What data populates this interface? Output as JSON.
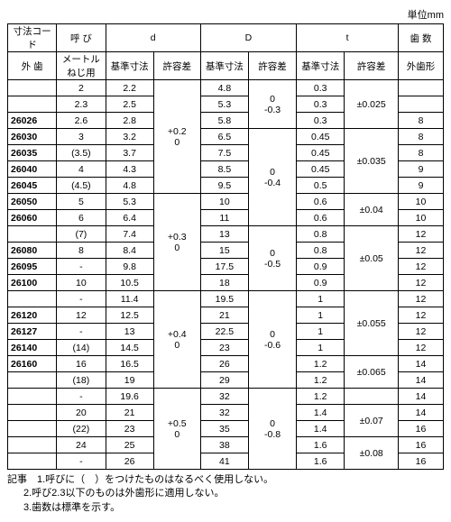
{
  "unit_label": "単位mm",
  "headers": {
    "code": "寸法コード",
    "nominal": "呼 び",
    "d": "d",
    "D": "D",
    "t": "t",
    "teeth": "歯 数",
    "outer": "外 歯",
    "metric": "メートルねじ用",
    "ref": "基準寸法",
    "tol": "許容差",
    "shape": "外歯形"
  },
  "d_tol": [
    "+0.2\n0",
    "+0.3\n0",
    "+0.4\n0",
    "+0.5\n0"
  ],
  "D_tol": [
    "0\n-0.3",
    "0\n-0.4",
    "0\n-0.5",
    "0\n-0.6",
    "0\n-0.8"
  ],
  "t_tol": [
    "±0.025",
    "±0.035",
    "±0.04",
    "±0.05",
    "±0.055",
    "±0.065",
    "±0.07",
    "±0.08"
  ],
  "rows": [
    {
      "code": "",
      "nom": "2",
      "d": "2.2",
      "D": "4.8",
      "t": "0.3",
      "teeth": ""
    },
    {
      "code": "",
      "nom": "2.3",
      "d": "2.5",
      "D": "5.3",
      "t": "0.3",
      "teeth": ""
    },
    {
      "code": "26026",
      "nom": "2.6",
      "d": "2.8",
      "D": "5.8",
      "t": "0.3",
      "teeth": "8"
    },
    {
      "code": "26030",
      "nom": "3",
      "d": "3.2",
      "D": "6.5",
      "t": "0.45",
      "teeth": "8"
    },
    {
      "code": "26035",
      "nom": "(3.5)",
      "d": "3.7",
      "D": "7.5",
      "t": "0.45",
      "teeth": "8"
    },
    {
      "code": "26040",
      "nom": "4",
      "d": "4.3",
      "D": "8.5",
      "t": "0.45",
      "teeth": "9"
    },
    {
      "code": "26045",
      "nom": "(4.5)",
      "d": "4.8",
      "D": "9.5",
      "t": "0.5",
      "teeth": "9"
    },
    {
      "code": "26050",
      "nom": "5",
      "d": "5.3",
      "D": "10",
      "t": "0.6",
      "teeth": "10"
    },
    {
      "code": "26060",
      "nom": "6",
      "d": "6.4",
      "D": "11",
      "t": "0.6",
      "teeth": "10"
    },
    {
      "code": "",
      "nom": "(7)",
      "d": "7.4",
      "D": "13",
      "t": "0.8",
      "teeth": "12"
    },
    {
      "code": "26080",
      "nom": "8",
      "d": "8.4",
      "D": "15",
      "t": "0.8",
      "teeth": "12"
    },
    {
      "code": "26095",
      "nom": "-",
      "d": "9.8",
      "D": "17.5",
      "t": "0.9",
      "teeth": "12"
    },
    {
      "code": "26100",
      "nom": "10",
      "d": "10.5",
      "D": "18",
      "t": "0.9",
      "teeth": "12"
    },
    {
      "code": "",
      "nom": "-",
      "d": "11.4",
      "D": "19.5",
      "t": "1",
      "teeth": "12"
    },
    {
      "code": "26120",
      "nom": "12",
      "d": "12.5",
      "D": "21",
      "t": "1",
      "teeth": "12"
    },
    {
      "code": "26127",
      "nom": "-",
      "d": "13",
      "D": "22.5",
      "t": "1",
      "teeth": "12"
    },
    {
      "code": "26140",
      "nom": "(14)",
      "d": "14.5",
      "D": "23",
      "t": "1",
      "teeth": "12"
    },
    {
      "code": "26160",
      "nom": "16",
      "d": "16.5",
      "D": "26",
      "t": "1.2",
      "teeth": "14"
    },
    {
      "code": "",
      "nom": "(18)",
      "d": "19",
      "D": "29",
      "t": "1.2",
      "teeth": "14"
    },
    {
      "code": "",
      "nom": "-",
      "d": "19.6",
      "D": "32",
      "t": "1.2",
      "teeth": "14"
    },
    {
      "code": "",
      "nom": "20",
      "d": "21",
      "D": "32",
      "t": "1.4",
      "teeth": "14"
    },
    {
      "code": "",
      "nom": "(22)",
      "d": "23",
      "D": "35",
      "t": "1.4",
      "teeth": "16"
    },
    {
      "code": "",
      "nom": "24",
      "d": "25",
      "D": "38",
      "t": "1.6",
      "teeth": "16"
    },
    {
      "code": "",
      "nom": "-",
      "d": "26",
      "D": "41",
      "t": "1.6",
      "teeth": "16"
    }
  ],
  "notes": [
    "記事　1.呼びに（　）をつけたものはなるべく使用しない。",
    "2.呼び2.3以下のものは外歯形に適用しない。",
    "3.歯数は標準を示す。"
  ]
}
